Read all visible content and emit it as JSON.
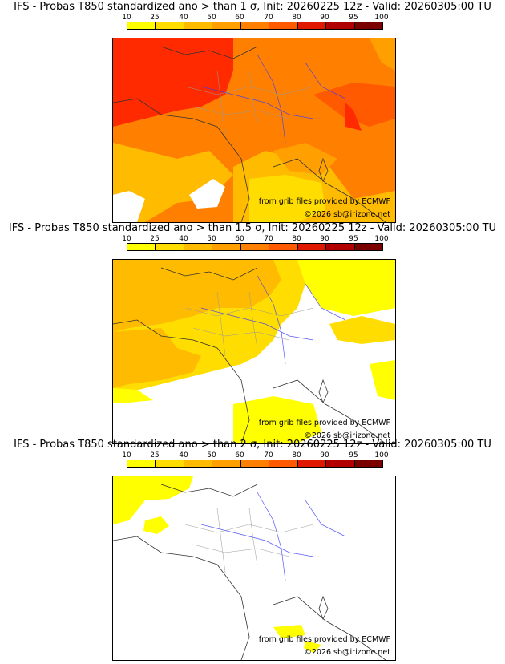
{
  "colorbar": {
    "ticks": [
      "10",
      "25",
      "40",
      "50",
      "60",
      "70",
      "80",
      "90",
      "95",
      "100"
    ],
    "colors": [
      "#ffff00",
      "#ffdd00",
      "#ffbb00",
      "#ffa000",
      "#ff8000",
      "#ff5a00",
      "#e01800",
      "#b00000",
      "#7a0000"
    ]
  },
  "panels": [
    {
      "title": "IFS - Probas T850  standardized ano > than 1 σ, Init: 20260225 12z - Valid: 20260305:00 TU",
      "credit_source": "from grib files provided by ECMWF",
      "credit_copy": "©2026 sb@irizone.net"
    },
    {
      "title": "IFS - Probas T850  standardized ano > than 1.5 σ, Init: 20260225 12z - Valid: 20260305:00 TU",
      "credit_source": "from grib files provided by ECMWF",
      "credit_copy": "©2026 sb@irizone.net"
    },
    {
      "title": "IFS - Probas T850  standardized ano > than 2 σ, Init: 20260225 12z - Valid: 20260305:00 TU",
      "credit_source": "from grib files provided by ECMWF",
      "credit_copy": "©2026 sb@irizone.net"
    }
  ]
}
